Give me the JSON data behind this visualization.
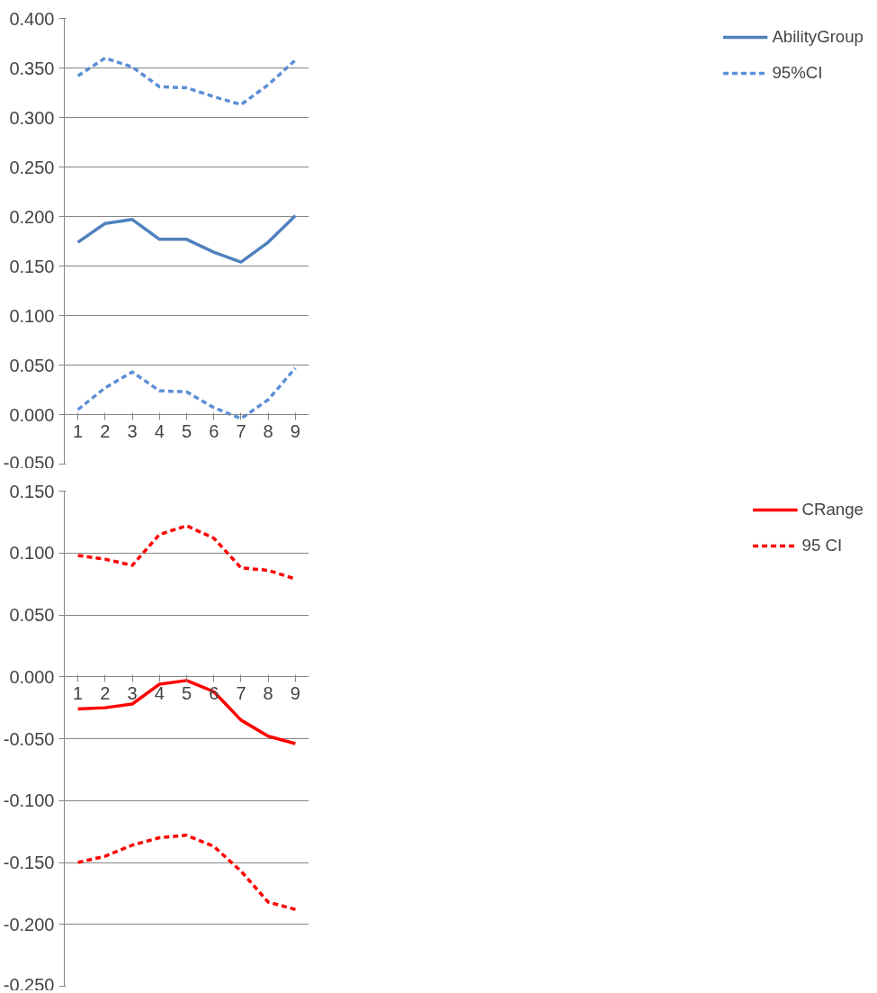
{
  "chart_data": [
    {
      "type": "line",
      "categories": [
        "1",
        "2",
        "3",
        "4",
        "5",
        "6",
        "7",
        "8",
        "9"
      ],
      "ylim": [
        -0.05,
        0.4
      ],
      "yticks": [
        {
          "value": -0.05,
          "label": "-0.050"
        },
        {
          "value": 0,
          "label": "0.000"
        },
        {
          "value": 0.05,
          "label": "0.050"
        },
        {
          "value": 0.1,
          "label": "0.100"
        },
        {
          "value": 0.15,
          "label": "0.150"
        },
        {
          "value": 0.2,
          "label": "0.200"
        },
        {
          "value": 0.25,
          "label": "0.250"
        },
        {
          "value": 0.3,
          "label": "0.300"
        },
        {
          "value": 0.35,
          "label": "0.350"
        },
        {
          "value": 0.4,
          "label": "0.400"
        }
      ],
      "grid": "y",
      "legend": "right",
      "series": [
        {
          "name": "AbilityGroup",
          "color": "#4f81bd",
          "line_style": "solid",
          "values": [
            0.174,
            0.193,
            0.197,
            0.177,
            0.177,
            0.164,
            0.154,
            0.174,
            0.201
          ]
        },
        {
          "name": "95%CI",
          "color": "#5b8fd6",
          "line_style": "dashed",
          "values": [
            0.342,
            0.36,
            0.351,
            0.331,
            0.33,
            0.321,
            0.313,
            0.333,
            0.358
          ]
        },
        {
          "color": "#5b8fd6",
          "line_style": "dashed",
          "values": [
            0.005,
            0.027,
            0.043,
            0.024,
            0.023,
            0.007,
            -0.004,
            0.015,
            0.047
          ]
        }
      ]
    },
    {
      "type": "line",
      "categories": [
        "1",
        "2",
        "3",
        "4",
        "5",
        "6",
        "7",
        "8",
        "9"
      ],
      "ylim": [
        -0.25,
        0.15
      ],
      "yticks": [
        {
          "value": -0.25,
          "label": "-0.250"
        },
        {
          "value": -0.2,
          "label": "-0.200"
        },
        {
          "value": -0.15,
          "label": "-0.150"
        },
        {
          "value": -0.1,
          "label": "-0.100"
        },
        {
          "value": -0.05,
          "label": "-0.050"
        },
        {
          "value": 0,
          "label": "0.000"
        },
        {
          "value": 0.05,
          "label": "0.050"
        },
        {
          "value": 0.1,
          "label": "0.100"
        },
        {
          "value": 0.15,
          "label": "0.150"
        }
      ],
      "grid": "y",
      "legend": "right",
      "series": [
        {
          "name": "CRange",
          "color": "#ff0000",
          "line_style": "solid",
          "values": [
            -0.026,
            -0.025,
            -0.022,
            -0.006,
            -0.003,
            -0.012,
            -0.035,
            -0.048,
            -0.054
          ]
        },
        {
          "name": "95 CI",
          "color": "#ff0000",
          "line_style": "dashed",
          "values": [
            0.098,
            0.095,
            0.09,
            0.115,
            0.122,
            0.112,
            0.088,
            0.086,
            0.079
          ]
        },
        {
          "color": "#ff0000",
          "line_style": "dashed",
          "values": [
            -0.15,
            -0.145,
            -0.136,
            -0.13,
            -0.128,
            -0.137,
            -0.157,
            -0.182,
            -0.188
          ]
        }
      ]
    }
  ]
}
